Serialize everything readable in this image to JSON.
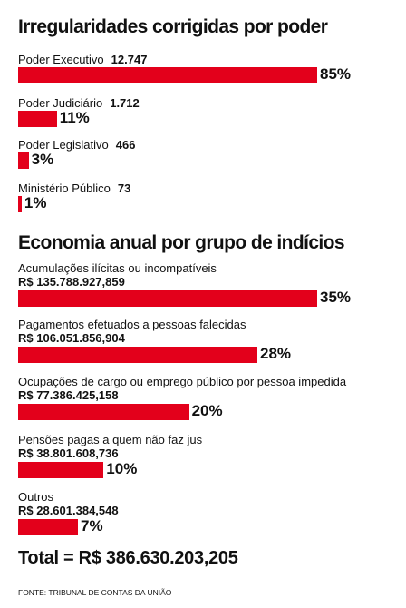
{
  "colors": {
    "bar": "#e3001b",
    "text": "#111111"
  },
  "chart_data": [
    {
      "type": "bar",
      "title": "Irregularidades corrigidas por poder",
      "series": [
        {
          "items": [
            {
              "label": "Poder Executivo",
              "count": "12.747",
              "pct": "85%",
              "value": 85
            },
            {
              "label": "Poder Judiciário",
              "count": "1.712",
              "pct": "11%",
              "value": 11
            },
            {
              "label": "Poder Legislativo",
              "count": "466",
              "pct": "3%",
              "value": 3
            },
            {
              "label": "Ministério Público",
              "count": "73",
              "pct": "1%",
              "value": 1
            }
          ]
        }
      ]
    },
    {
      "type": "bar",
      "title": "Economia anual por grupo de indícios",
      "series": [
        {
          "items": [
            {
              "label": "Acumulações ilícitas ou incompatíveis",
              "amount": "R$ 135.788.927,859",
              "pct": "35%",
              "value": 35
            },
            {
              "label": "Pagamentos efetuados a pessoas falecidas",
              "amount": "R$ 106.051.856,904",
              "pct": "28%",
              "value": 28
            },
            {
              "label": "Ocupações de cargo ou emprego público por pessoa impedida",
              "amount": "R$ 77.386.425,158",
              "pct": "20%",
              "value": 20
            },
            {
              "label": "Pensões pagas a quem não faz jus",
              "amount": "R$ 38.801.608,736",
              "pct": "10%",
              "value": 10
            },
            {
              "label": "Outros",
              "amount": "R$ 28.601.384,548",
              "pct": "7%",
              "value": 7
            }
          ]
        }
      ]
    }
  ],
  "total": "Total = R$ 386.630.203,205",
  "source": "FONTE: TRIBUNAL DE CONTAS DA UNIÃO"
}
